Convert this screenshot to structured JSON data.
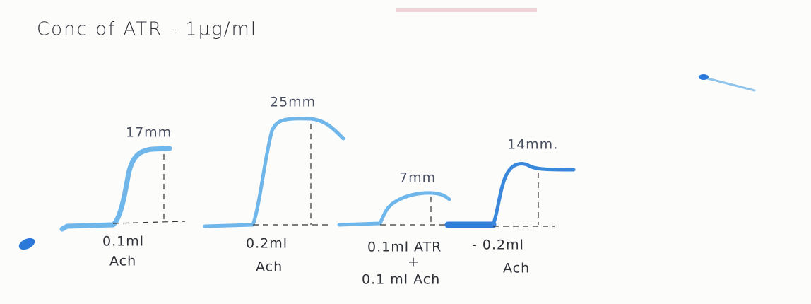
{
  "title": "Conc of ATR - 1µg/ml",
  "responses": [
    {
      "height": "17mm",
      "dose": "0.1ml",
      "drug": "Ach"
    },
    {
      "height": "25mm",
      "dose": "0.2ml",
      "drug": "Ach"
    },
    {
      "height": "7mm",
      "dose": "0.1ml ATR",
      "plus": "+",
      "drug": "0.1 ml Ach"
    },
    {
      "height": "14mm.",
      "dose": "- 0.2ml",
      "drug": "Ach"
    }
  ]
}
